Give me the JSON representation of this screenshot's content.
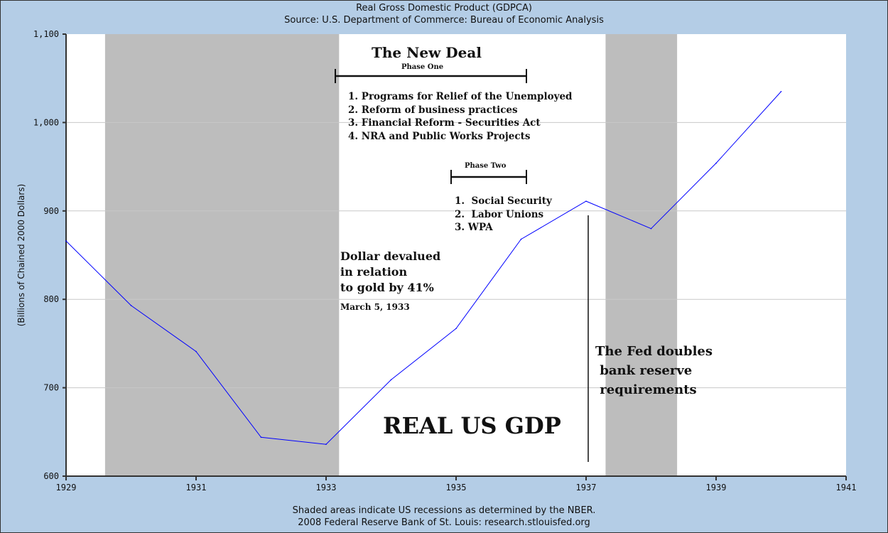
{
  "chart_data": {
    "type": "line",
    "title": "Real Gross Domestic Product (GDPCA)",
    "subtitle": "Source: U.S. Department of Commerce: Bureau of Economic Analysis",
    "ylabel": "(Billions of Chained 2000 Dollars)",
    "xlabel": "",
    "xlim": [
      1929,
      1941
    ],
    "ylim": [
      600,
      1100
    ],
    "x_ticks": [
      "1929",
      "1931",
      "1933",
      "1935",
      "1937",
      "1939",
      "1941"
    ],
    "y_ticks": [
      "600",
      "700",
      "800",
      "900",
      "1,000",
      "1,100"
    ],
    "grid": true,
    "x": [
      1929,
      1930,
      1931,
      1932,
      1933,
      1934,
      1935,
      1936,
      1937,
      1938,
      1939,
      1940
    ],
    "values": [
      866,
      793,
      741,
      644,
      636,
      709,
      767,
      868,
      911,
      880,
      954,
      1035
    ],
    "line_color": "#0000ff",
    "recessions": [
      [
        1929.6,
        1933.2
      ],
      [
        1937.3,
        1938.4
      ]
    ],
    "recession_color": "#bdbdbd",
    "footnotes": [
      "Shaded areas indicate US recessions as determined by the NBER.",
      "2008 Federal Reserve Bank of St. Louis: research.stlouisfed.org"
    ]
  },
  "annotations": {
    "new_deal_title": "The New Deal",
    "phase_one": "Phase One",
    "phase_one_items": [
      "1. Programs for Relief of the Unemployed",
      "2. Reform of business practices",
      "3. Financial Reform - Securities Act",
      "4. NRA and Public Works Projects"
    ],
    "phase_two": "Phase Two",
    "phase_two_items": [
      "1.  Social Security",
      "2.  Labor Unions",
      "3. WPA"
    ],
    "dollar_lines": [
      "Dollar devalued",
      "in relation",
      "to gold by 41%"
    ],
    "dollar_date": "March 5, 1933",
    "fed_lines": [
      "The Fed doubles",
      " bank reserve",
      " requirements"
    ],
    "big_label": "REAL US GDP"
  }
}
